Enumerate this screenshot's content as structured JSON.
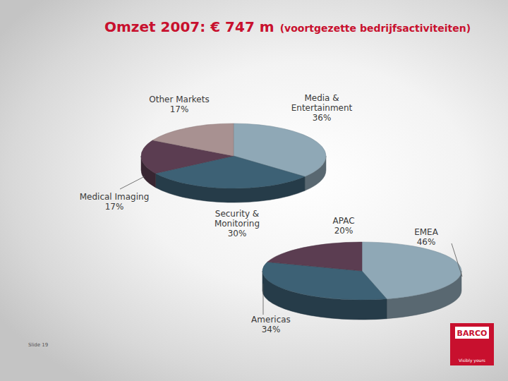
{
  "page": {
    "title": "Omzet 2007: € 747 m",
    "subtitle": "(voortgezette bedrijfsactiviteiten)",
    "footer": "Slide 19",
    "logo": "BARCO",
    "tagline": "Visibly yours"
  },
  "chart_data": [
    {
      "type": "pie",
      "categories": [
        "Media & Entertainment",
        "Security & Monitoring",
        "Medical Imaging",
        "Other Markets"
      ],
      "values": [
        36,
        30,
        17,
        17
      ],
      "value_labels": [
        "36%",
        "30%",
        "17%",
        "17%"
      ],
      "colors": [
        "#8fa8b6",
        "#3d6175",
        "#5b3d51",
        "#a89191"
      ],
      "data_labels": true
    },
    {
      "type": "pie",
      "categories": [
        "EMEA",
        "Americas",
        "APAC"
      ],
      "values": [
        46,
        34,
        20
      ],
      "value_labels": [
        "46%",
        "34%",
        "20%"
      ],
      "colors": [
        "#8fa8b6",
        "#3d6175",
        "#5b3d51"
      ],
      "data_labels": true
    }
  ]
}
